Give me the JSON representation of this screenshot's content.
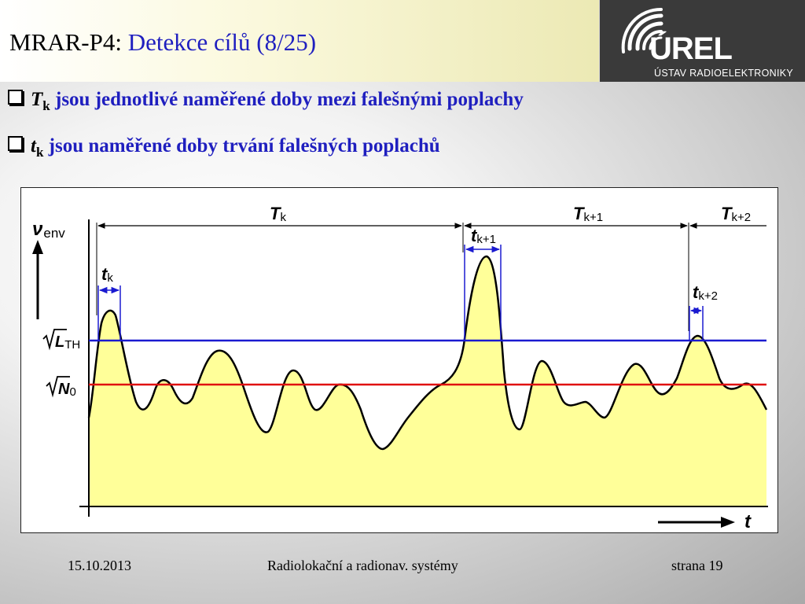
{
  "header": {
    "title_main": "MRAR-P4:",
    "title_sub": "Detekce cílů (8/25)"
  },
  "logo": {
    "name": "ÚREL",
    "subtitle": "ÚSTAV RADIOELEKTRONIKY"
  },
  "bullets": [
    {
      "symbol": "T",
      "subscript": "k",
      "text": "jsou jednotlivé naměřené doby mezi falešnými poplachy"
    },
    {
      "symbol": "t",
      "subscript": "k",
      "text": "jsou naměřené doby trvání falešných poplachů"
    }
  ],
  "diagram": {
    "y_axis_symbol": "ν",
    "y_axis_sub": "env",
    "x_axis_symbol": "t",
    "threshold_label": "L",
    "threshold_sub": "TH",
    "noise_label": "N",
    "noise_sub": "0",
    "intervals": [
      {
        "symbol": "T",
        "sub": "k"
      },
      {
        "symbol": "T",
        "sub": "k+1"
      },
      {
        "symbol": "T",
        "sub": "k+2"
      }
    ],
    "durations": [
      {
        "symbol": "t",
        "sub": "k"
      },
      {
        "symbol": "t",
        "sub": "k+1"
      },
      {
        "symbol": "t",
        "sub": "k+2"
      }
    ],
    "colors": {
      "threshold_line": "#1a1ad0",
      "noise_line": "#e01010",
      "signal_fill": "#ffff99",
      "above_threshold_fill": "#77f0f8",
      "arrows": "#1a1ad0"
    }
  },
  "footer": {
    "date": "15.10.2013",
    "course": "Radiolokační a radionav. systémy",
    "page": "strana 19"
  }
}
